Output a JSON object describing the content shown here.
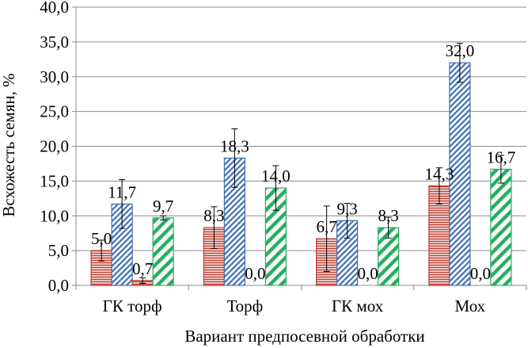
{
  "chart_data": {
    "type": "bar",
    "title": "",
    "xlabel": "Вариант предпосевной обработки",
    "ylabel": "Всхожесть семян, %",
    "ylim": [
      0,
      40
    ],
    "yticks": [
      "0,0",
      "5,0",
      "10,0",
      "15,0",
      "20,0",
      "25,0",
      "30,0",
      "35,0",
      "40,0"
    ],
    "grid": true,
    "legend": "none",
    "categories": [
      "ГК торф",
      "Торф",
      "ГК мох",
      "Мох"
    ],
    "series": [
      {
        "values": [
          5.0,
          8.3,
          6.7,
          14.3
        ],
        "labels": [
          "5,0",
          "8,3",
          "6,7",
          "14,3"
        ],
        "errors": [
          1.5,
          3.0,
          4.7,
          2.6
        ],
        "color": "#c0392b",
        "pattern": "horizontal-stripes"
      },
      {
        "values": [
          11.7,
          18.3,
          9.3,
          32.0
        ],
        "labels": [
          "11,7",
          "18,3",
          "9,3",
          "32,0"
        ],
        "errors": [
          3.5,
          4.2,
          2.5,
          2.8
        ],
        "color": "#3f6fb0",
        "pattern": "diagonal-stripes"
      },
      {
        "values": [
          0.7,
          0.0,
          0.0,
          0.0
        ],
        "labels": [
          "0,7",
          "0,0",
          "0,0",
          "0,0"
        ],
        "errors": [
          0.4,
          0,
          0,
          0
        ],
        "color": "#c0392b",
        "pattern": "horizontal-stripes"
      },
      {
        "values": [
          9.7,
          14.0,
          8.3,
          16.7
        ],
        "labels": [
          "9,7",
          "14,0",
          "8,3",
          "16,7"
        ],
        "errors": [
          0.3,
          3.2,
          1.5,
          2.0
        ],
        "color": "#27ae60",
        "pattern": "bold-diagonal-stripes"
      }
    ]
  }
}
